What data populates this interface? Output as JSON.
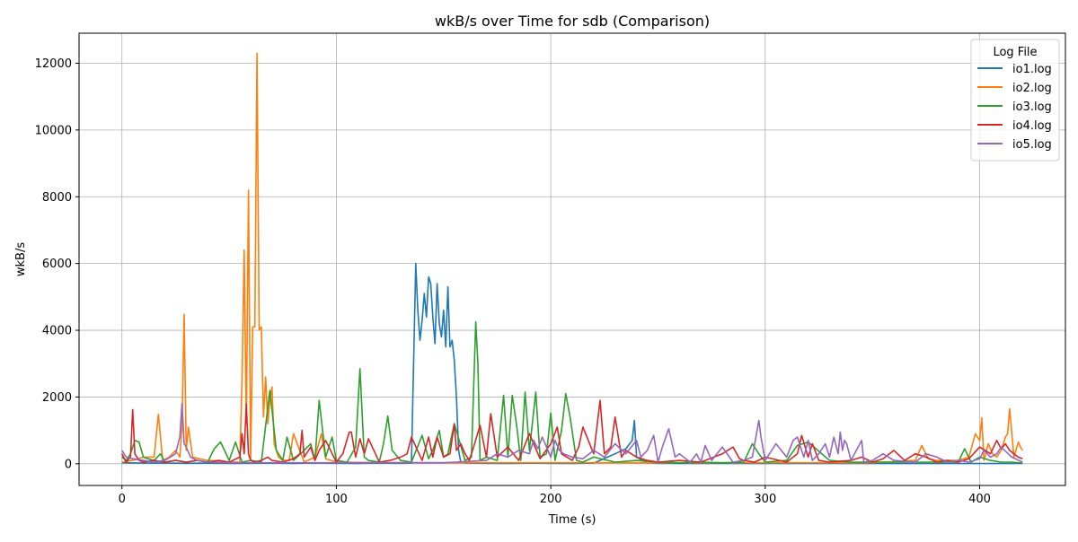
{
  "chart_data": {
    "type": "line",
    "title": "wkB/s over Time for sdb (Comparison)",
    "xlabel": "Time (s)",
    "ylabel": "wkB/s",
    "xlim": [
      -20,
      440
    ],
    "ylim": [
      -650,
      12900
    ],
    "xticks": [
      0,
      100,
      200,
      300,
      400
    ],
    "yticks": [
      0,
      2000,
      4000,
      6000,
      8000,
      10000,
      12000
    ],
    "grid": true,
    "legend": {
      "title": "Log File",
      "position": "top-right"
    },
    "series": [
      {
        "name": "io1.log",
        "color": "#1f77b4",
        "x": [
          0,
          10,
          20,
          30,
          40,
          50,
          60,
          70,
          80,
          90,
          100,
          110,
          120,
          130,
          135,
          136,
          137,
          138,
          139,
          140,
          141,
          142,
          143,
          144,
          145,
          146,
          147,
          148,
          149,
          150,
          151,
          152,
          153,
          154,
          155,
          156,
          157,
          158,
          160,
          170,
          180,
          190,
          200,
          210,
          220,
          230,
          235,
          238,
          239,
          240,
          245,
          250,
          260,
          300,
          350,
          400,
          420
        ],
        "y": [
          30,
          20,
          25,
          15,
          20,
          10,
          15,
          20,
          10,
          25,
          15,
          10,
          20,
          15,
          20,
          3000,
          6000,
          4600,
          3700,
          4300,
          5100,
          4400,
          5600,
          5400,
          4400,
          3600,
          5400,
          4200,
          3800,
          4600,
          3500,
          5300,
          3500,
          3700,
          3100,
          2000,
          400,
          50,
          20,
          15,
          10,
          20,
          15,
          10,
          20,
          300,
          450,
          700,
          1300,
          200,
          30,
          15,
          10,
          10,
          10,
          10,
          10
        ]
      },
      {
        "name": "io2.log",
        "color": "#ff7f0e",
        "x": [
          0,
          5,
          10,
          15,
          17,
          19,
          22,
          25,
          27,
          28,
          29,
          30,
          31,
          33,
          36,
          40,
          45,
          50,
          55,
          56,
          57,
          58,
          59,
          60,
          61,
          62,
          63,
          64,
          65,
          66,
          67,
          68,
          69,
          70,
          71,
          73,
          75,
          78,
          80,
          85,
          90,
          93,
          95,
          100,
          110,
          150,
          200,
          250,
          300,
          350,
          370,
          373,
          376,
          380,
          390,
          395,
          398,
          400,
          401,
          402,
          404,
          406,
          408,
          410,
          412,
          413,
          414,
          416,
          418,
          419,
          420
        ],
        "y": [
          50,
          100,
          200,
          200,
          1480,
          100,
          200,
          400,
          200,
          1100,
          4480,
          400,
          1100,
          200,
          150,
          100,
          80,
          50,
          50,
          2500,
          6400,
          1200,
          8200,
          100,
          4100,
          4100,
          12300,
          4000,
          4100,
          1400,
          2600,
          1200,
          1900,
          2300,
          600,
          200,
          100,
          100,
          900,
          50,
          200,
          900,
          150,
          50,
          40,
          30,
          30,
          30,
          30,
          30,
          100,
          550,
          150,
          100,
          100,
          200,
          900,
          700,
          1380,
          100,
          600,
          300,
          200,
          400,
          800,
          900,
          1650,
          200,
          650,
          500,
          400
        ]
      },
      {
        "name": "io3.log",
        "color": "#2ca02c",
        "x": [
          0,
          2,
          4,
          6,
          8,
          10,
          12,
          15,
          18,
          20,
          25,
          30,
          35,
          40,
          43,
          46,
          50,
          53,
          56,
          60,
          65,
          69,
          72,
          75,
          77,
          80,
          85,
          88,
          90,
          92,
          95,
          98,
          100,
          105,
          109,
          111,
          113,
          115,
          120,
          122,
          124,
          126,
          130,
          135,
          140,
          143,
          145,
          148,
          150,
          152,
          155,
          160,
          163,
          165,
          166,
          167,
          170,
          175,
          178,
          180,
          182,
          184,
          186,
          188,
          190,
          193,
          195,
          198,
          200,
          202,
          205,
          207,
          209,
          212,
          215,
          220,
          230,
          240,
          250,
          260,
          270,
          280,
          290,
          294,
          297,
          300,
          310,
          315,
          320,
          330,
          340,
          350,
          360,
          370,
          380,
          390,
          393,
          396,
          400,
          405,
          410,
          415,
          420
        ],
        "y": [
          200,
          100,
          300,
          700,
          650,
          200,
          150,
          100,
          300,
          50,
          100,
          50,
          100,
          50,
          450,
          650,
          100,
          650,
          50,
          100,
          50,
          2200,
          400,
          100,
          800,
          100,
          400,
          600,
          100,
          1900,
          200,
          800,
          100,
          50,
          500,
          2850,
          200,
          100,
          50,
          600,
          1430,
          400,
          100,
          50,
          850,
          150,
          400,
          1000,
          200,
          300,
          1200,
          100,
          200,
          4250,
          3000,
          100,
          200,
          100,
          2050,
          200,
          2050,
          1200,
          100,
          2150,
          400,
          2150,
          200,
          300,
          1520,
          100,
          1000,
          2100,
          1400,
          100,
          50,
          200,
          50,
          100,
          50,
          30,
          50,
          30,
          50,
          600,
          300,
          50,
          100,
          550,
          650,
          100,
          50,
          50,
          50,
          50,
          50,
          50,
          450,
          50,
          200,
          100,
          50,
          50,
          20
        ]
      },
      {
        "name": "io4.log",
        "color": "#d62728",
        "x": [
          0,
          2,
          4,
          5,
          6,
          8,
          10,
          15,
          20,
          25,
          30,
          35,
          40,
          45,
          50,
          55,
          56,
          57,
          58,
          59,
          60,
          62,
          65,
          68,
          70,
          75,
          80,
          83,
          84,
          85,
          88,
          90,
          92,
          95,
          100,
          103,
          106,
          107,
          109,
          111,
          113,
          115,
          120,
          125,
          130,
          133,
          135,
          140,
          143,
          145,
          147,
          150,
          153,
          155,
          156,
          158,
          160,
          162,
          164,
          167,
          170,
          172,
          175,
          180,
          185,
          190,
          195,
          200,
          203,
          205,
          210,
          213,
          215,
          220,
          223,
          225,
          228,
          230,
          233,
          235,
          240,
          245,
          250,
          260,
          270,
          280,
          285,
          288,
          290,
          295,
          300,
          310,
          315,
          317,
          320,
          322,
          325,
          330,
          340,
          345,
          350,
          355,
          360,
          365,
          370,
          375,
          380,
          385,
          390,
          395,
          400,
          405,
          408,
          410,
          412,
          414,
          416,
          418,
          420
        ],
        "y": [
          300,
          50,
          200,
          1620,
          300,
          100,
          50,
          100,
          50,
          100,
          50,
          100,
          50,
          100,
          50,
          200,
          900,
          300,
          1800,
          300,
          100,
          50,
          100,
          200,
          100,
          50,
          150,
          300,
          1000,
          200,
          500,
          100,
          400,
          700,
          50,
          300,
          950,
          950,
          200,
          750,
          300,
          750,
          50,
          100,
          200,
          300,
          800,
          100,
          800,
          200,
          800,
          200,
          300,
          1200,
          400,
          600,
          300,
          100,
          500,
          1150,
          200,
          1500,
          200,
          500,
          100,
          900,
          150,
          600,
          1100,
          300,
          100,
          500,
          1100,
          300,
          1900,
          300,
          500,
          1400,
          200,
          400,
          200,
          100,
          50,
          100,
          50,
          300,
          500,
          150,
          100,
          50,
          200,
          50,
          300,
          850,
          200,
          600,
          100,
          50,
          100,
          200,
          50,
          150,
          400,
          100,
          300,
          200,
          50,
          100,
          50,
          150,
          500,
          300,
          700,
          450,
          600,
          400,
          300,
          200,
          150
        ]
      },
      {
        "name": "io5.log",
        "color": "#9467bd",
        "x": [
          0,
          2,
          5,
          10,
          15,
          20,
          25,
          27,
          28,
          29,
          30,
          32,
          35,
          40,
          50,
          60,
          70,
          80,
          90,
          100,
          150,
          170,
          175,
          180,
          185,
          190,
          192,
          194,
          196,
          198,
          200,
          202,
          204,
          206,
          210,
          215,
          220,
          225,
          230,
          235,
          240,
          242,
          245,
          248,
          250,
          252,
          255,
          258,
          260,
          265,
          268,
          270,
          272,
          275,
          280,
          285,
          290,
          294,
          297,
          298,
          300,
          305,
          310,
          313,
          315,
          318,
          320,
          322,
          325,
          328,
          330,
          332,
          334,
          335,
          336,
          337,
          338,
          340,
          345,
          346,
          350,
          355,
          360,
          370,
          375,
          380,
          385,
          390,
          395,
          400,
          402,
          405,
          408,
          410,
          415,
          420
        ],
        "y": [
          400,
          200,
          150,
          100,
          50,
          100,
          300,
          800,
          1800,
          600,
          500,
          200,
          100,
          50,
          30,
          30,
          30,
          30,
          30,
          30,
          30,
          100,
          300,
          200,
          400,
          300,
          700,
          450,
          800,
          500,
          200,
          700,
          400,
          300,
          200,
          150,
          400,
          200,
          600,
          300,
          700,
          200,
          400,
          850,
          50,
          500,
          1050,
          200,
          300,
          50,
          300,
          50,
          550,
          100,
          500,
          50,
          100,
          200,
          1300,
          800,
          100,
          600,
          200,
          700,
          800,
          200,
          700,
          100,
          300,
          600,
          200,
          800,
          300,
          950,
          400,
          700,
          600,
          100,
          700,
          50,
          100,
          300,
          100,
          50,
          300,
          200,
          50,
          100,
          50,
          150,
          400,
          200,
          300,
          500,
          200,
          50
        ]
      }
    ]
  }
}
